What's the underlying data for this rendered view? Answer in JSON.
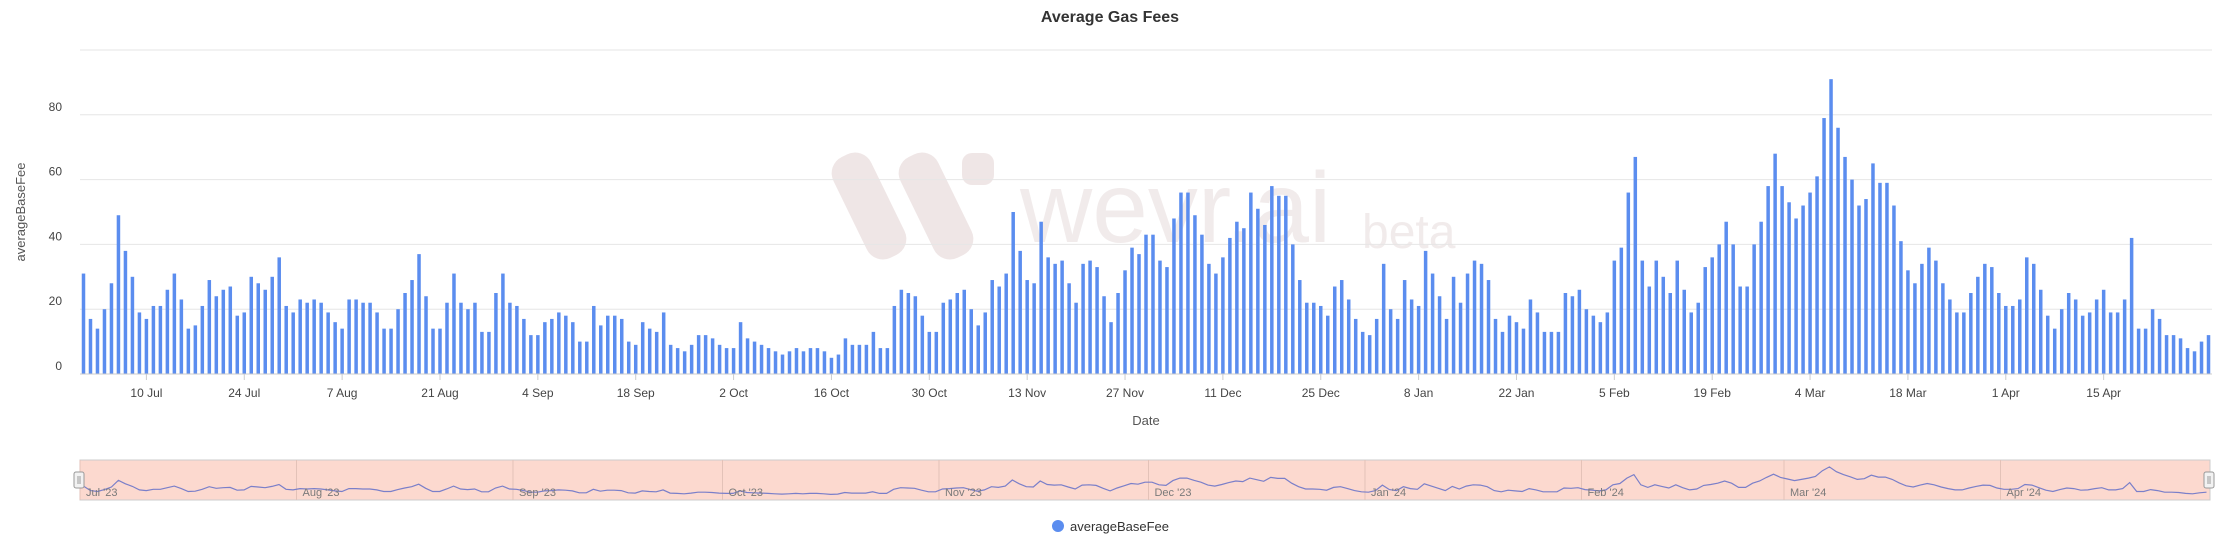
{
  "chart_data": {
    "type": "bar",
    "title": "Average Gas Fees",
    "xlabel": "Date",
    "ylabel": "averageBaseFee",
    "ylim": [
      0,
      100
    ],
    "yticks": [
      0,
      20,
      40,
      60,
      80
    ],
    "grid": true,
    "x_start": "2023-07-01",
    "x_end": "2024-04-20",
    "xtick_labels": [
      "10 Jul",
      "24 Jul",
      "7 Aug",
      "21 Aug",
      "4 Sep",
      "18 Sep",
      "2 Oct",
      "16 Oct",
      "30 Oct",
      "13 Nov",
      "27 Nov",
      "11 Dec",
      "25 Dec",
      "8 Jan",
      "22 Jan",
      "5 Feb",
      "19 Feb",
      "4 Mar",
      "18 Mar",
      "1 Apr",
      "15 Apr"
    ],
    "navigator_labels": [
      "Jul '23",
      "Aug '23",
      "Sep '23",
      "Oct '23",
      "Nov '23",
      "Dec '23",
      "Jan '24",
      "Feb '24",
      "Mar '24",
      "Apr '24"
    ],
    "legend_position": "bottom-center",
    "watermark": "wevr.ai beta",
    "series": [
      {
        "name": "averageBaseFee",
        "color": "#5b8def",
        "values": [
          31,
          17,
          14,
          20,
          28,
          49,
          38,
          30,
          19,
          17,
          21,
          21,
          26,
          31,
          23,
          14,
          15,
          21,
          29,
          24,
          26,
          27,
          18,
          19,
          30,
          28,
          26,
          30,
          36,
          21,
          19,
          23,
          22,
          23,
          22,
          19,
          16,
          14,
          23,
          23,
          22,
          22,
          19,
          14,
          14,
          20,
          25,
          29,
          37,
          24,
          14,
          14,
          22,
          31,
          22,
          20,
          22,
          13,
          13,
          25,
          31,
          22,
          21,
          17,
          12,
          12,
          16,
          17,
          19,
          18,
          16,
          10,
          10,
          21,
          15,
          18,
          18,
          17,
          10,
          9,
          16,
          14,
          13,
          19,
          9,
          8,
          7,
          9,
          12,
          12,
          11,
          9,
          8,
          8,
          16,
          11,
          10,
          9,
          8,
          7,
          6,
          7,
          8,
          7,
          8,
          8,
          7,
          5,
          6,
          11,
          9,
          9,
          9,
          13,
          8,
          8,
          21,
          26,
          25,
          24,
          18,
          13,
          13,
          22,
          23,
          25,
          26,
          20,
          15,
          19,
          29,
          27,
          31,
          50,
          38,
          29,
          28,
          47,
          36,
          34,
          35,
          28,
          22,
          34,
          35,
          33,
          24,
          16,
          25,
          32,
          39,
          37,
          43,
          43,
          35,
          33,
          48,
          56,
          56,
          49,
          43,
          34,
          31,
          36,
          42,
          47,
          45,
          56,
          51,
          46,
          58,
          55,
          55,
          40,
          29,
          22,
          22,
          21,
          18,
          27,
          29,
          23,
          17,
          13,
          12,
          17,
          34,
          20,
          17,
          29,
          23,
          21,
          38,
          31,
          24,
          17,
          30,
          22,
          31,
          35,
          34,
          29,
          17,
          13,
          18,
          16,
          14,
          23,
          19,
          13,
          13,
          13,
          25,
          24,
          26,
          20,
          18,
          16,
          19,
          35,
          39,
          56,
          67,
          35,
          27,
          35,
          30,
          25,
          35,
          26,
          19,
          22,
          33,
          36,
          40,
          47,
          40,
          27,
          27,
          40,
          47,
          58,
          68,
          58,
          53,
          48,
          52,
          56,
          61,
          79,
          91,
          76,
          67,
          60,
          52,
          54,
          65,
          59,
          59,
          52,
          41,
          32,
          28,
          34,
          39,
          35,
          28,
          23,
          19,
          19,
          25,
          30,
          34,
          33,
          25,
          21,
          21,
          23,
          36,
          34,
          26,
          18,
          14,
          20,
          25,
          23,
          18,
          19,
          23,
          26,
          19,
          19,
          23,
          42,
          14,
          14,
          20,
          17,
          12,
          12,
          11,
          8,
          7,
          10,
          12
        ]
      }
    ]
  }
}
